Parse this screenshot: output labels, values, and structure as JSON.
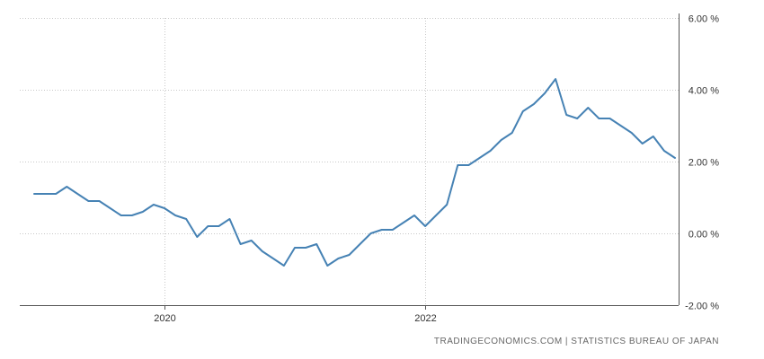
{
  "chart_data": {
    "type": "line",
    "title": "",
    "xlabel": "",
    "ylabel": "",
    "x_range": [
      "2019-01",
      "2023-12"
    ],
    "ylim": [
      -2,
      6
    ],
    "grid": true,
    "legend": "none",
    "y_ticks": [
      {
        "value": 6,
        "label": "6.00 %"
      },
      {
        "value": 4,
        "label": "4.00 %"
      },
      {
        "value": 2,
        "label": "2.00 %"
      },
      {
        "value": 0,
        "label": "0.00 %"
      },
      {
        "value": -2,
        "label": "-2.00 %"
      }
    ],
    "x_ticks": [
      {
        "value": "2020-01",
        "label": "2020"
      },
      {
        "value": "2022-01",
        "label": "2022"
      }
    ],
    "series": [
      {
        "color": "#4682b4",
        "points": [
          [
            "2019-01",
            1.1
          ],
          [
            "2019-02",
            1.1
          ],
          [
            "2019-03",
            1.1
          ],
          [
            "2019-04",
            1.3
          ],
          [
            "2019-05",
            1.1
          ],
          [
            "2019-06",
            0.9
          ],
          [
            "2019-07",
            0.9
          ],
          [
            "2019-08",
            0.7
          ],
          [
            "2019-09",
            0.5
          ],
          [
            "2019-10",
            0.5
          ],
          [
            "2019-11",
            0.6
          ],
          [
            "2019-12",
            0.8
          ],
          [
            "2020-01",
            0.7
          ],
          [
            "2020-02",
            0.5
          ],
          [
            "2020-03",
            0.4
          ],
          [
            "2020-04",
            -0.1
          ],
          [
            "2020-05",
            0.2
          ],
          [
            "2020-06",
            0.2
          ],
          [
            "2020-07",
            0.4
          ],
          [
            "2020-08",
            -0.3
          ],
          [
            "2020-09",
            -0.2
          ],
          [
            "2020-10",
            -0.5
          ],
          [
            "2020-11",
            -0.7
          ],
          [
            "2020-12",
            -0.9
          ],
          [
            "2021-01",
            -0.4
          ],
          [
            "2021-02",
            -0.4
          ],
          [
            "2021-03",
            -0.3
          ],
          [
            "2021-04",
            -0.9
          ],
          [
            "2021-05",
            -0.7
          ],
          [
            "2021-06",
            -0.6
          ],
          [
            "2021-07",
            -0.3
          ],
          [
            "2021-08",
            0.0
          ],
          [
            "2021-09",
            0.1
          ],
          [
            "2021-10",
            0.1
          ],
          [
            "2021-11",
            0.3
          ],
          [
            "2021-12",
            0.5
          ],
          [
            "2022-01",
            0.2
          ],
          [
            "2022-02",
            0.5
          ],
          [
            "2022-03",
            0.8
          ],
          [
            "2022-04",
            1.9
          ],
          [
            "2022-05",
            1.9
          ],
          [
            "2022-06",
            2.1
          ],
          [
            "2022-07",
            2.3
          ],
          [
            "2022-08",
            2.6
          ],
          [
            "2022-09",
            2.8
          ],
          [
            "2022-10",
            3.4
          ],
          [
            "2022-11",
            3.6
          ],
          [
            "2022-12",
            3.9
          ],
          [
            "2023-01",
            4.3
          ],
          [
            "2023-02",
            3.3
          ],
          [
            "2023-03",
            3.2
          ],
          [
            "2023-04",
            3.5
          ],
          [
            "2023-05",
            3.2
          ],
          [
            "2023-06",
            3.2
          ],
          [
            "2023-07",
            3.0
          ],
          [
            "2023-08",
            2.8
          ],
          [
            "2023-09",
            2.5
          ],
          [
            "2023-10",
            2.7
          ],
          [
            "2023-11",
            2.3
          ],
          [
            "2023-12",
            2.1
          ]
        ]
      }
    ],
    "source": "TRADINGECONOMICS.COM  |  STATISTICS BUREAU OF JAPAN"
  }
}
